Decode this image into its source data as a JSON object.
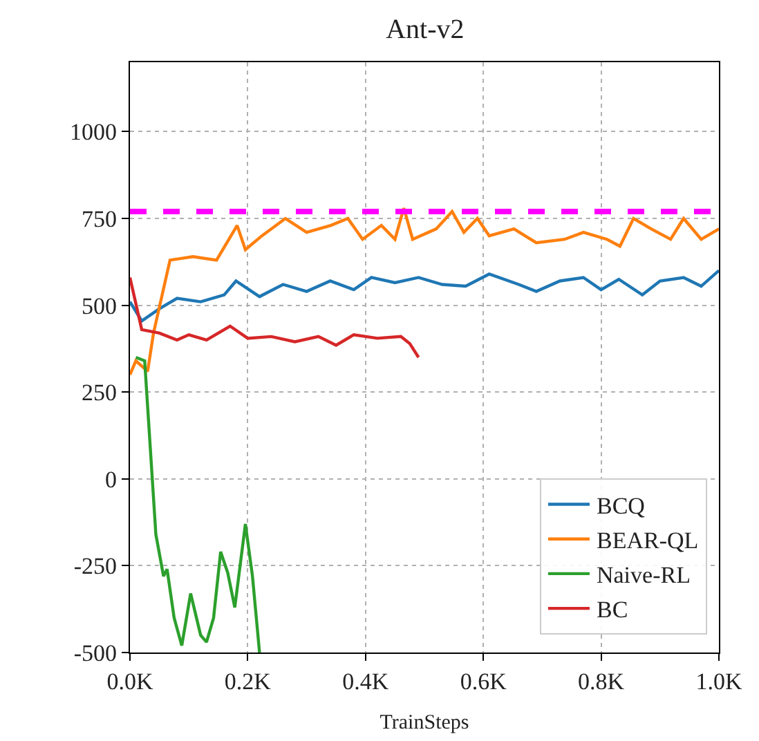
{
  "chart_data": {
    "type": "line",
    "title": "Ant-v2",
    "xlabel": "TrainSteps",
    "xlim": [
      0,
      1
    ],
    "xticks": [
      {
        "value": 0,
        "label": "0.0K"
      },
      {
        "value": 0.2,
        "label": "0.2K"
      },
      {
        "value": 0.4,
        "label": "0.4K"
      },
      {
        "value": 0.6,
        "label": "0.6K"
      },
      {
        "value": 0.8,
        "label": "0.8K"
      },
      {
        "value": 1,
        "label": "1.0K"
      }
    ],
    "ylim": [
      -500,
      1200
    ],
    "yticks": [
      -500,
      -250,
      0,
      250,
      500,
      750,
      1000
    ],
    "grid": true,
    "legend": "bottom right",
    "line_style": "solid",
    "ref_lines": [
      {
        "axis": "y",
        "value": 770,
        "color": "#ff00ff",
        "line_style": "dashed"
      }
    ],
    "series": [
      {
        "name": "BCQ",
        "color": "#1f77b4",
        "x": [
          0,
          0.02,
          0.05,
          0.08,
          0.12,
          0.16,
          0.18,
          0.22,
          0.26,
          0.3,
          0.34,
          0.38,
          0.41,
          0.45,
          0.49,
          0.53,
          0.57,
          0.61,
          0.66,
          0.69,
          0.73,
          0.77,
          0.8,
          0.83,
          0.87,
          0.9,
          0.94,
          0.97,
          1.0
        ],
        "values": [
          510,
          455,
          490,
          520,
          510,
          530,
          570,
          525,
          560,
          540,
          570,
          545,
          580,
          565,
          580,
          560,
          555,
          590,
          560,
          540,
          570,
          580,
          545,
          575,
          530,
          570,
          580,
          555,
          600
        ]
      },
      {
        "name": "BEAR-QL",
        "color": "#ff7f0e",
        "x": [
          0,
          0.01,
          0.03,
          0.04,
          0.068,
          0.107,
          0.147,
          0.182,
          0.196,
          0.224,
          0.264,
          0.3,
          0.341,
          0.37,
          0.395,
          0.427,
          0.45,
          0.465,
          0.48,
          0.52,
          0.547,
          0.567,
          0.59,
          0.61,
          0.652,
          0.69,
          0.738,
          0.77,
          0.81,
          0.832,
          0.855,
          0.885,
          0.918,
          0.94,
          0.97,
          1.0
        ],
        "values": [
          300,
          340,
          310,
          420,
          630,
          640,
          630,
          730,
          660,
          700,
          750,
          710,
          730,
          750,
          690,
          730,
          690,
          780,
          690,
          720,
          770,
          710,
          750,
          700,
          720,
          680,
          690,
          710,
          690,
          670,
          750,
          720,
          690,
          750,
          690,
          720
        ]
      },
      {
        "name": "Naive-RL",
        "color": "#2ca02c",
        "x": [
          0.01,
          0.025,
          0.044,
          0.057,
          0.063,
          0.075,
          0.088,
          0.103,
          0.12,
          0.13,
          0.142,
          0.154,
          0.166,
          0.178,
          0.196,
          0.208,
          0.22
        ],
        "values": [
          350,
          340,
          -160,
          -280,
          -260,
          -400,
          -480,
          -330,
          -450,
          -470,
          -400,
          -210,
          -270,
          -370,
          -130,
          -280,
          -500
        ]
      },
      {
        "name": "BC",
        "color": "#d62728",
        "x": [
          0,
          0.02,
          0.05,
          0.08,
          0.1,
          0.13,
          0.17,
          0.2,
          0.24,
          0.28,
          0.32,
          0.35,
          0.38,
          0.42,
          0.46,
          0.475,
          0.49
        ],
        "values": [
          580,
          430,
          420,
          400,
          415,
          400,
          440,
          405,
          410,
          395,
          410,
          385,
          415,
          405,
          410,
          390,
          350
        ]
      }
    ]
  }
}
